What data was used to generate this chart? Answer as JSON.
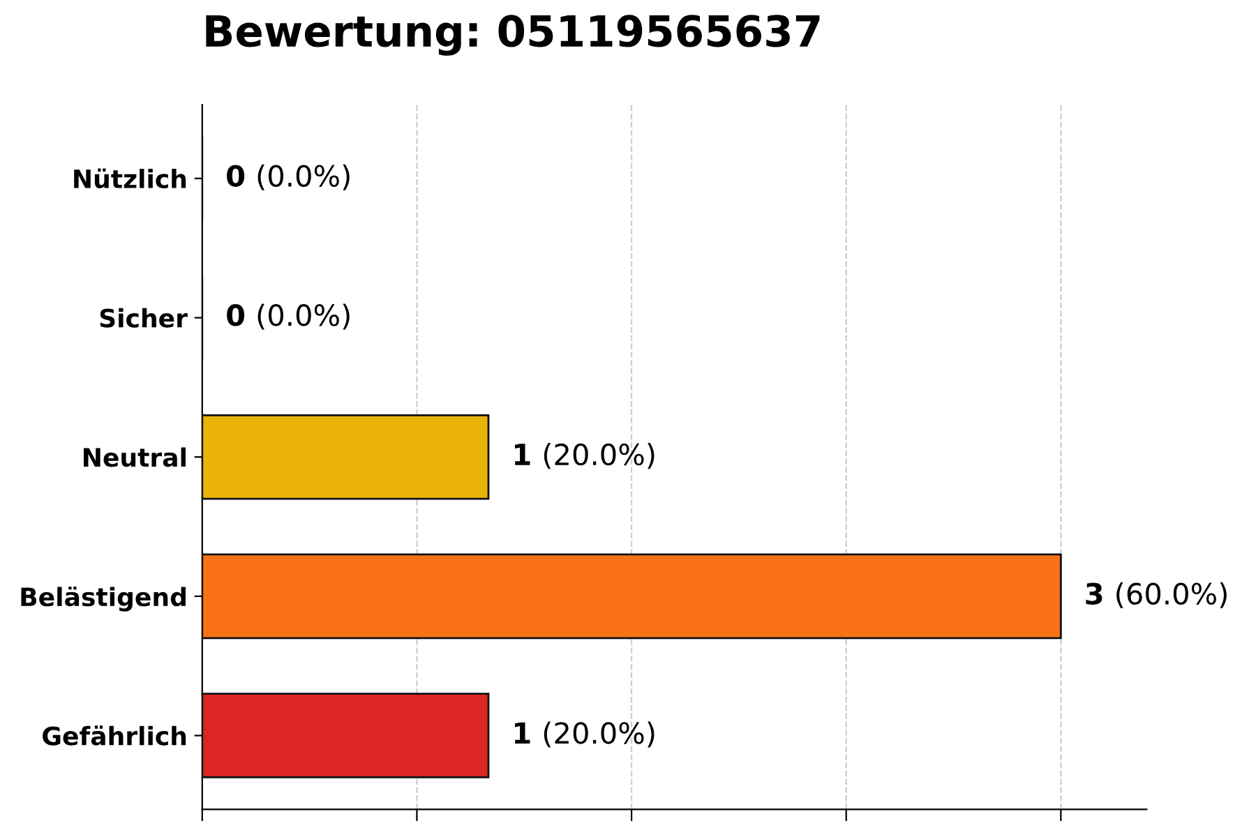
{
  "chart_data": {
    "type": "bar",
    "orientation": "horizontal",
    "title": "Bewertung: 05119565637",
    "categories": [
      "Nützlich",
      "Sicher",
      "Neutral",
      "Belästigend",
      "Gefährlich"
    ],
    "values": [
      0,
      0,
      1,
      3,
      1
    ],
    "colors": [
      "#111111",
      "#111111",
      "#eab308",
      "#f97316",
      "#dc2626"
    ],
    "value_labels": [
      "0 (0.0%)",
      "0 (0.0%)",
      "1 (20.0%)",
      "3 (60.0%)",
      "1 (20.0%)"
    ],
    "xlim": [
      0,
      3.3
    ],
    "xticks": [
      {
        "value": 0,
        "label": null
      },
      {
        "value": 0.75,
        "label": null
      },
      {
        "value": 1.5,
        "label": null
      },
      {
        "value": 2.25,
        "label": null
      },
      {
        "value": 3,
        "label": null
      }
    ],
    "grid": "x",
    "tick_labels": "y",
    "legend": false
  }
}
